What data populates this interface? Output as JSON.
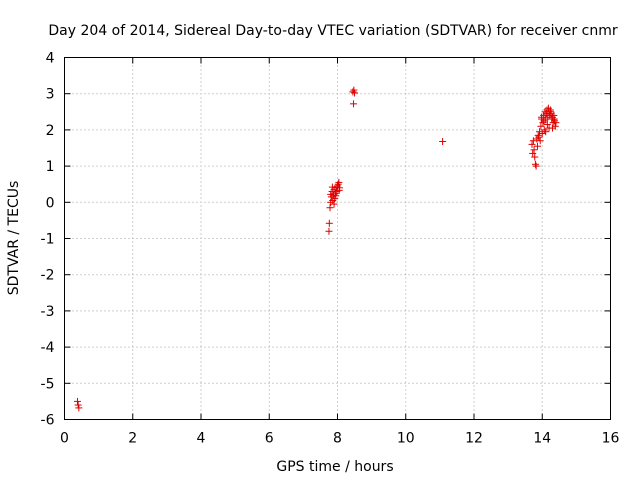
{
  "chart_data": {
    "type": "scatter",
    "title": "Day 204 of 2014, Sidereal Day-to-day VTEC variation (SDTVAR) for receiver cnmr",
    "xlabel": "GPS time / hours",
    "ylabel": "SDTVAR / TECUs",
    "xlim": [
      0,
      16
    ],
    "ylim": [
      -6,
      4
    ],
    "xticks": [
      "0",
      "2",
      "4",
      "6",
      "8",
      "10",
      "12",
      "14",
      "16"
    ],
    "yticks": [
      "-6",
      "-5",
      "-4",
      "-3",
      "-2",
      "-1",
      "0",
      "1",
      "2",
      "3",
      "4"
    ],
    "grid": true,
    "marker": "+",
    "color": "#e00000",
    "series": [
      {
        "name": "SDTVAR",
        "x": [
          0.38,
          0.4,
          0.42,
          7.75,
          7.76,
          7.78,
          7.8,
          7.82,
          7.84,
          7.86,
          7.88,
          7.9,
          7.92,
          7.94,
          7.96,
          7.98,
          8.0,
          8.02,
          8.04,
          8.06,
          7.85,
          7.95,
          8.05,
          7.9,
          7.8,
          8.45,
          8.48,
          8.5,
          8.47,
          11.08,
          13.7,
          13.72,
          13.74,
          13.76,
          13.78,
          13.8,
          13.82,
          13.84,
          13.86,
          13.88,
          13.9,
          13.92,
          13.94,
          13.96,
          13.98,
          14.0,
          14.02,
          14.04,
          14.06,
          14.08,
          14.1,
          14.12,
          14.14,
          14.16,
          14.18,
          14.2,
          14.22,
          14.24,
          14.26,
          14.28,
          14.3,
          14.32,
          14.34,
          14.36,
          14.38,
          14.4,
          14.1,
          14.15,
          14.2,
          13.98,
          14.05,
          14.25,
          14.3,
          14.35
        ],
        "y": [
          -5.5,
          -5.6,
          -5.68,
          -0.8,
          -0.58,
          -0.15,
          0.0,
          0.15,
          0.3,
          0.05,
          0.2,
          0.35,
          0.1,
          0.25,
          0.4,
          0.3,
          0.45,
          0.5,
          0.55,
          0.4,
          0.42,
          0.18,
          0.33,
          -0.05,
          0.22,
          3.05,
          3.1,
          3.02,
          2.72,
          1.68,
          1.6,
          1.35,
          1.7,
          1.45,
          1.25,
          1.05,
          1.0,
          1.75,
          1.55,
          1.85,
          1.8,
          1.95,
          1.7,
          2.1,
          2.3,
          1.9,
          2.2,
          2.4,
          2.0,
          2.5,
          2.3,
          2.45,
          2.55,
          2.35,
          2.6,
          2.5,
          2.4,
          2.55,
          2.45,
          2.3,
          2.35,
          2.2,
          2.4,
          2.25,
          2.1,
          2.2,
          1.95,
          2.15,
          2.05,
          2.35,
          2.25,
          2.5,
          2.05,
          2.3
        ]
      }
    ]
  }
}
